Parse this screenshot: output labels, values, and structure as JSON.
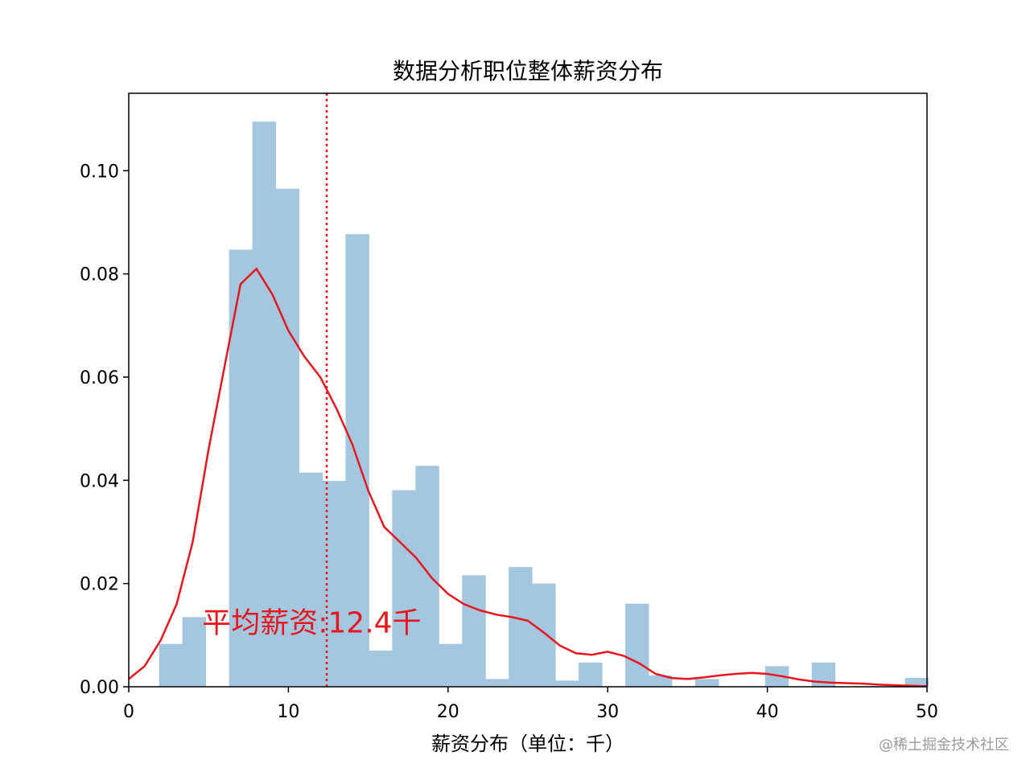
{
  "chart_data": {
    "type": "bar",
    "title": "数据分析职位整体薪资分布",
    "xlabel": "薪资分布（单位：千）",
    "ylabel": "",
    "xlim": [
      0,
      50
    ],
    "ylim": [
      0,
      0.115
    ],
    "xticks": [
      "0",
      "10",
      "20",
      "30",
      "40",
      "50"
    ],
    "yticks": [
      "0.00",
      "0.02",
      "0.04",
      "0.06",
      "0.08",
      "0.10"
    ],
    "grid": false,
    "histogram": {
      "bin_start": 1.9,
      "bin_width": 1.46,
      "densities": [
        0.0083,
        0.0135,
        0.0,
        0.0847,
        0.1095,
        0.0965,
        0.0415,
        0.0399,
        0.0877,
        0.007,
        0.0381,
        0.0428,
        0.0083,
        0.0216,
        0.0015,
        0.0232,
        0.02,
        0.0012,
        0.0047,
        0.0,
        0.0161,
        0.0022,
        0.0,
        0.0015,
        0.0,
        0.0,
        0.004,
        0.0,
        0.0047,
        0.0,
        0.0,
        0.0,
        0.0017
      ],
      "color": "#a4c6de"
    },
    "kde": {
      "color": "#e8161c",
      "x": [
        0,
        1,
        2,
        3,
        4,
        5,
        6,
        7,
        8,
        9,
        10,
        11,
        12,
        13,
        14,
        15,
        16,
        17,
        18,
        19,
        20,
        21,
        22,
        23,
        24,
        25,
        26,
        27,
        28,
        29,
        30,
        31,
        32,
        33,
        34,
        35,
        36,
        37,
        38,
        39,
        40,
        41,
        42,
        43,
        44,
        45,
        46,
        47,
        48,
        49,
        50
      ],
      "y": [
        0.0015,
        0.004,
        0.009,
        0.016,
        0.028,
        0.046,
        0.062,
        0.078,
        0.081,
        0.076,
        0.069,
        0.064,
        0.06,
        0.054,
        0.047,
        0.038,
        0.031,
        0.028,
        0.025,
        0.021,
        0.018,
        0.016,
        0.0148,
        0.014,
        0.0135,
        0.0128,
        0.0105,
        0.008,
        0.0065,
        0.0062,
        0.0068,
        0.006,
        0.0045,
        0.0025,
        0.0017,
        0.0015,
        0.0018,
        0.0022,
        0.0025,
        0.0027,
        0.0025,
        0.002,
        0.0014,
        0.001,
        0.0008,
        0.0007,
        0.0006,
        0.0004,
        0.0003,
        0.0002,
        0.0001
      ]
    },
    "mean_line": {
      "x": 12.4,
      "color": "#e8161c",
      "style": "dotted"
    },
    "annotation": {
      "text": "平均薪资:12.4千",
      "x": 4.6,
      "y": 0.0105
    }
  },
  "watermark": "@稀土掘金技术社区"
}
